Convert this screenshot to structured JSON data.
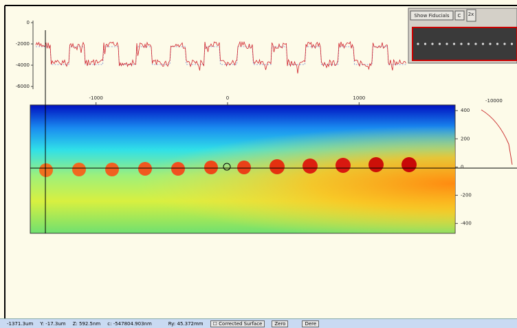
{
  "profile": {
    "ylim": [
      -6000,
      0
    ],
    "yticks": [
      0,
      -2000,
      -4000,
      -6000
    ]
  },
  "map": {
    "xlim": [
      -1500,
      1730
    ],
    "xticks": [
      -1000,
      0,
      1000
    ],
    "ylim": [
      -470,
      440
    ],
    "yticks": [
      400,
      200,
      0,
      -200,
      -400
    ]
  },
  "side_plot": {
    "tick": -10000
  },
  "fiducial_panel": {
    "button": "Show Fiducials",
    "c_button": "C",
    "zoom": "2x"
  },
  "status_bar": {
    "x": "-1371.3um",
    "y": "Y: -17.3um",
    "z": "Z: 592.5nm",
    "c": "c: -547804.903nm",
    "ry": "Ry: 45.372mm",
    "corrected_surface": "Corrected Surface",
    "zero": "Zero",
    "deriv": "Dere"
  }
}
